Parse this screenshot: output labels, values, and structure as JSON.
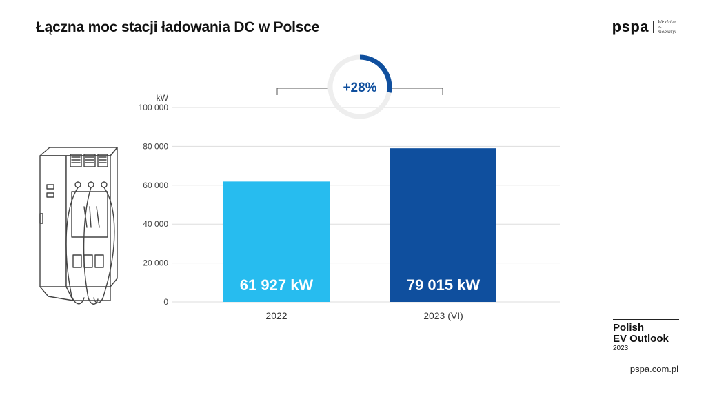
{
  "header": {
    "title": "Łączna moc stacji ładowania DC w Polsce"
  },
  "logo": {
    "word": "pspa",
    "tagline_1": "We drive",
    "tagline_2": "e-mobility!"
  },
  "footer": {
    "outlook_line1": "Polish",
    "outlook_line2": "EV Outlook",
    "outlook_line3": "2023",
    "website": "pspa.com.pl"
  },
  "colors": {
    "bar_2022": "#27bcef",
    "bar_2023": "#0f4f9e",
    "ring_track": "#eeeeee",
    "ring_fill": "#0f4f9e",
    "grid": "#dddddd"
  },
  "chart_data": {
    "type": "bar",
    "categories": [
      "2022",
      "2023 (VI)"
    ],
    "values": [
      61927,
      79015
    ],
    "data_labels": [
      "61 927 kW",
      "79 015 kW"
    ],
    "ylabel": "kW",
    "ylim": [
      0,
      100000
    ],
    "yticks": [
      0,
      20000,
      40000,
      60000,
      80000,
      100000
    ],
    "ytick_labels": [
      "0",
      "20 000",
      "40 000",
      "60 000",
      "80 000",
      "100 000"
    ],
    "grid": true,
    "annotation": {
      "text": "+28%",
      "ring_fraction": 0.28
    }
  }
}
